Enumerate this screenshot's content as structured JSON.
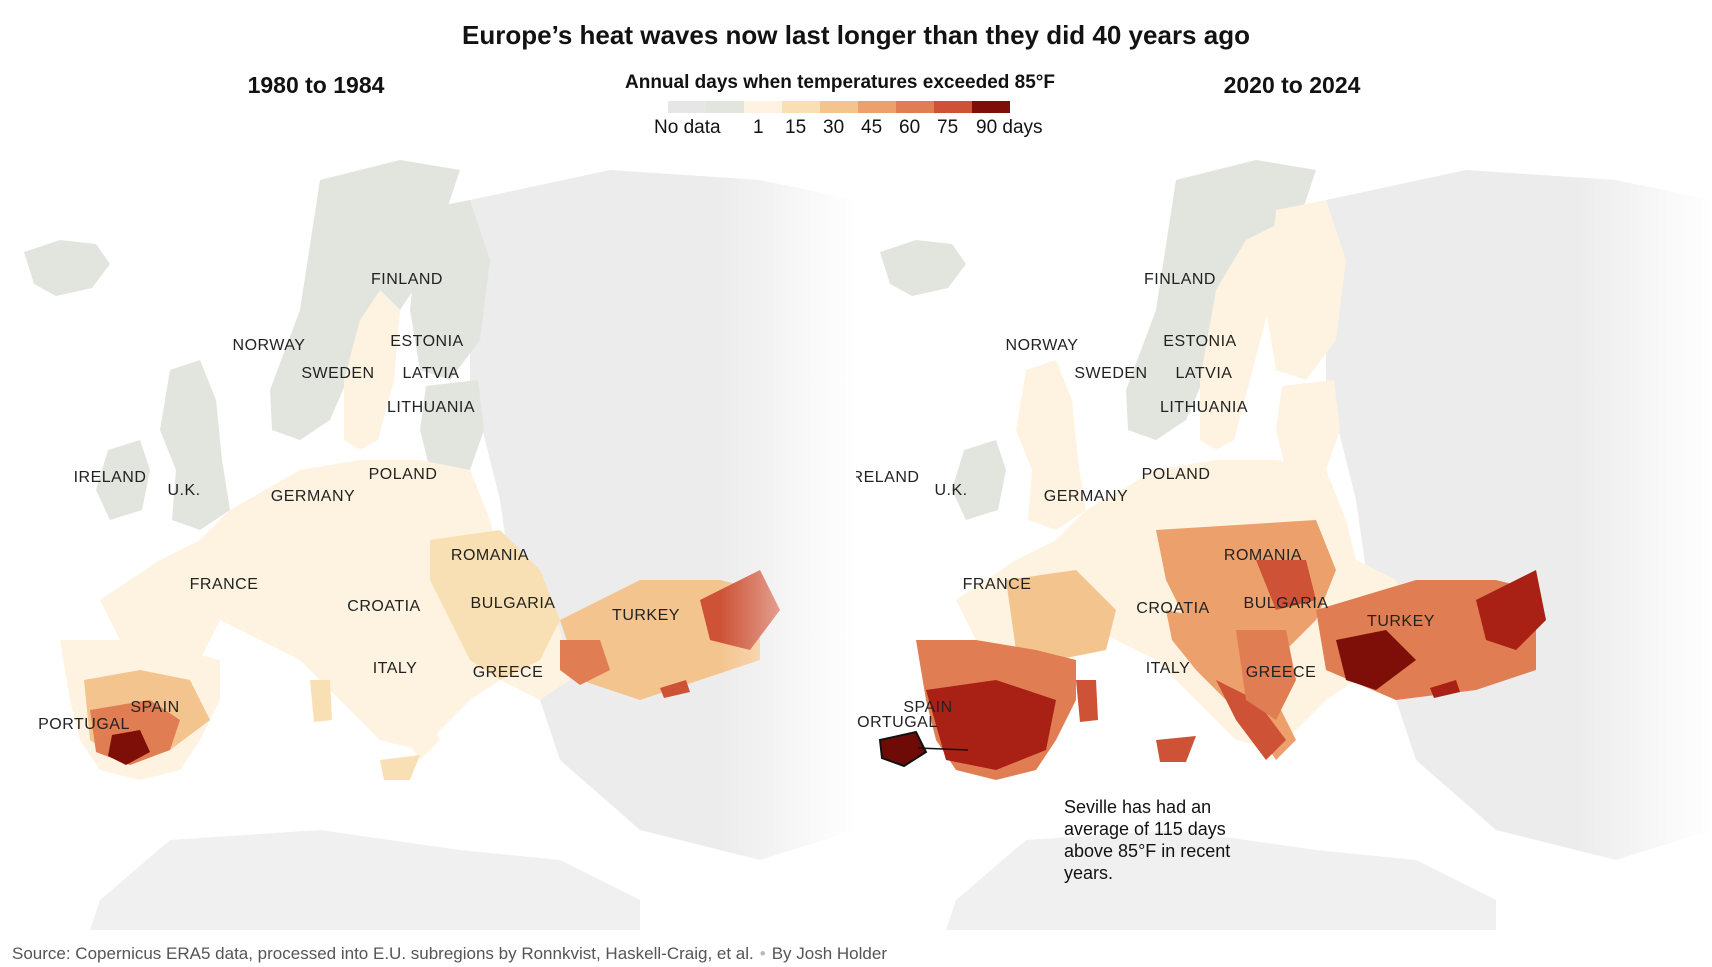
{
  "title": "Europe’s heat waves now last longer than they did 40 years ago",
  "panels": {
    "left": {
      "title": "1980 to 1984"
    },
    "right": {
      "title": "2020 to 2024"
    }
  },
  "legend": {
    "title": "Annual days when temperatures exceeded 85°F",
    "no_data_label": "No data",
    "tick_labels": [
      "1",
      "15",
      "30",
      "45",
      "60",
      "75",
      "90 days"
    ],
    "colors": {
      "no_data": "#e6e6e6",
      "under_1": "#e2e4de",
      "bins": [
        "#fdf3e0",
        "#f9dfb4",
        "#f4c48e",
        "#eca06c",
        "#e17d52",
        "#cd5236",
        "#a82114",
        "#6f0b06"
      ]
    }
  },
  "countries": {
    "norway": "NORWAY",
    "sweden": "SWEDEN",
    "finland": "FINLAND",
    "estonia": "ESTONIA",
    "latvia": "LATVIA",
    "lithuania": "LITHUANIA",
    "ireland": "IRELAND",
    "uk": "U.K.",
    "germany": "GERMANY",
    "poland": "POLAND",
    "france": "FRANCE",
    "romania": "ROMANIA",
    "croatia": "CROATIA",
    "bulgaria": "BULGARIA",
    "turkey": "TURKEY",
    "italy": "ITALY",
    "greece": "GREECE",
    "spain": "SPAIN",
    "portugal": "PORTUGAL"
  },
  "annotation": "Seville has had an average of 115 days above 85°F in recent years.",
  "footer": {
    "source": "Source: Copernicus ERA5 data, processed into E.U. subregions by Ronnkvist, Haskell-Craig, et al.",
    "byline": "By Josh Holder"
  }
}
